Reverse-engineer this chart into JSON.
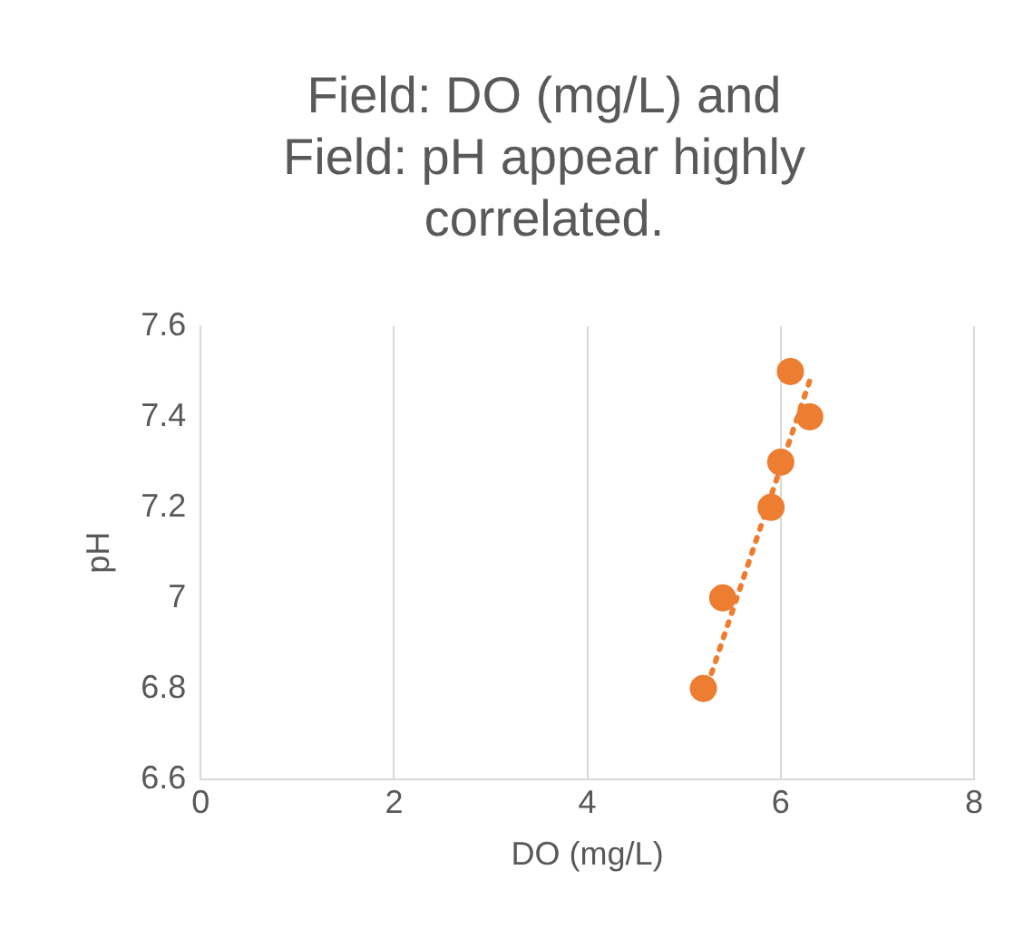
{
  "chart_data": {
    "type": "scatter",
    "title": "Field: DO (mg/L) and Field: pH appear highly correlated.",
    "xlabel": "DO (mg/L)",
    "ylabel": "pH",
    "series": [
      {
        "color": "#ed7d31",
        "x": [
          5.2,
          5.4,
          5.9,
          6.0,
          6.1,
          6.3
        ],
        "values": [
          6.8,
          7.0,
          7.2,
          7.3,
          7.5,
          7.4
        ],
        "marker": "circle"
      },
      {
        "type": "line",
        "color": "#ed7d31",
        "x": [
          5.2,
          6.3
        ],
        "values": [
          6.78,
          7.48
        ],
        "line_style": "dotted",
        "marker": "none"
      }
    ],
    "xlim": [
      0,
      8
    ],
    "xticks": [
      0,
      2,
      4,
      6,
      8
    ],
    "ylim": [
      6.6,
      7.6
    ],
    "yticks": [
      6.6,
      6.8,
      7,
      7.2,
      7.4,
      7.6
    ],
    "grid": "x",
    "legend": false
  }
}
